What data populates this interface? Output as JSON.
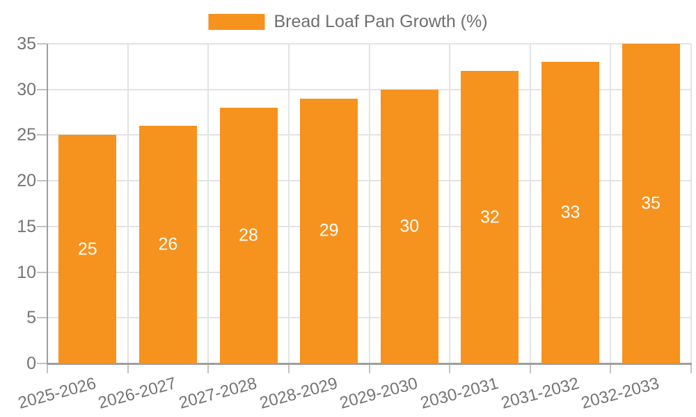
{
  "legend": {
    "label": "Bread Loaf Pan Growth (%)"
  },
  "chart_data": {
    "type": "bar",
    "title": "Bread Loaf Pan Growth (%)",
    "categories": [
      "2025-2026",
      "2026-2027",
      "2027-2028",
      "2028-2029",
      "2029-2030",
      "2030-2031",
      "2031-2032",
      "2032-2033"
    ],
    "series": [
      {
        "name": "Bread Loaf Pan Growth (%)",
        "values": [
          25,
          26,
          28,
          29,
          30,
          32,
          33,
          35
        ]
      }
    ],
    "bar_value_labels": [
      "25",
      "26",
      "28",
      "29",
      "30",
      "32",
      "33",
      "35"
    ],
    "xlabel": "",
    "ylabel": "",
    "ylim": [
      0,
      35
    ],
    "y_ticks": [
      0,
      5,
      10,
      15,
      20,
      25,
      30,
      35
    ],
    "y_tick_labels": [
      "0",
      "5",
      "10",
      "15",
      "20",
      "25",
      "30",
      "35"
    ],
    "grid": true,
    "legend_position": "top-center",
    "colors": {
      "bar": "#F6921E",
      "grid": "#E3E3E3",
      "axis": "#9E9E9E",
      "tick": "#C2C2C2",
      "axis_text": "#757575",
      "legend_text": "#6F6F6F",
      "bar_label_text": "#FFFFFF",
      "background": "#FFFFFF"
    }
  }
}
